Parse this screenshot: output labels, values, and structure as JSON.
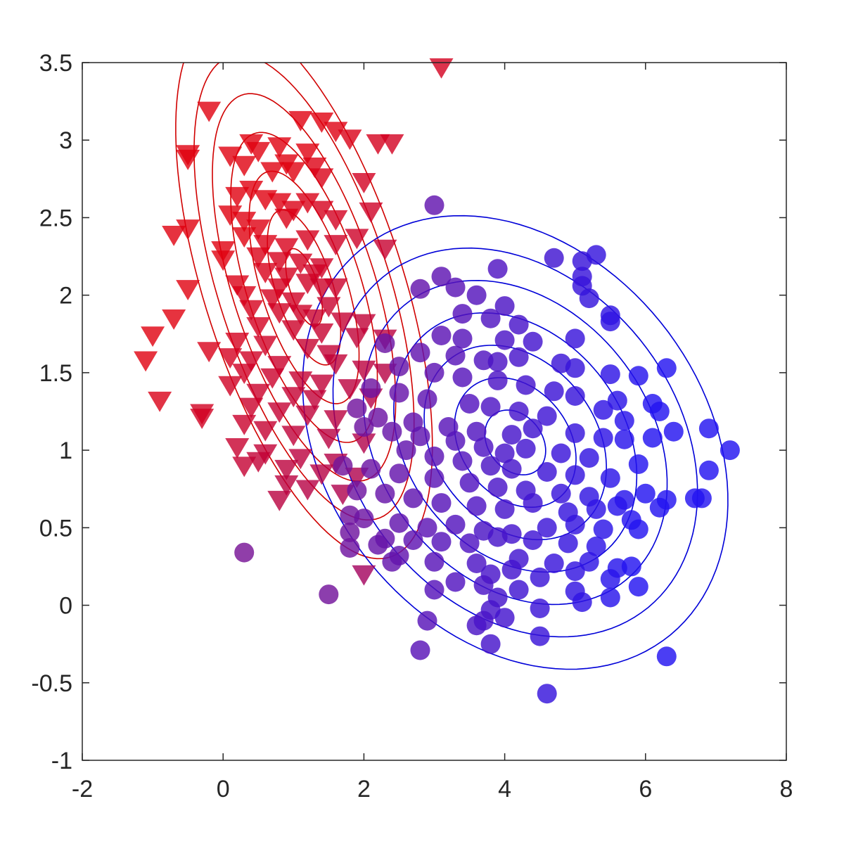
{
  "chart_data": {
    "type": "scatter",
    "title": "",
    "xlabel": "",
    "ylabel": "",
    "xlim": [
      -2,
      8
    ],
    "ylim": [
      -1,
      3.5
    ],
    "xticks": [
      "-2",
      "0",
      "2",
      "4",
      "6",
      "8"
    ],
    "yticks": [
      "-1",
      "-0.5",
      "0",
      "0.5",
      "1",
      "1.5",
      "2",
      "2.5",
      "3",
      "3.5"
    ],
    "grid": false,
    "legend": "none",
    "colors": {
      "class1": "#e0000f",
      "class2": "#2b12ee",
      "contour1": "#d00000",
      "contour2": "#0000d8",
      "axis": "#262626"
    },
    "series": [
      {
        "marker": "triangle-down",
        "color_scale": "red-to-purple",
        "points": [
          [
            3.1,
            3.47
          ],
          [
            -0.2,
            3.19
          ],
          [
            1.1,
            3.13
          ],
          [
            1.4,
            3.12
          ],
          [
            1.6,
            3.06
          ],
          [
            1.8,
            3.01
          ],
          [
            2.2,
            2.98
          ],
          [
            2.4,
            2.98
          ],
          [
            0.4,
            2.98
          ],
          [
            0.8,
            2.96
          ],
          [
            0.5,
            2.93
          ],
          [
            1.2,
            2.92
          ],
          [
            -0.5,
            2.91
          ],
          [
            -0.5,
            2.88
          ],
          [
            0.1,
            2.9
          ],
          [
            0.3,
            2.84
          ],
          [
            0.9,
            2.85
          ],
          [
            1.0,
            2.8
          ],
          [
            1.3,
            2.83
          ],
          [
            0.7,
            2.8
          ],
          [
            1.4,
            2.76
          ],
          [
            2.0,
            2.73
          ],
          [
            0.4,
            2.68
          ],
          [
            0.2,
            2.64
          ],
          [
            0.6,
            2.62
          ],
          [
            0.8,
            2.6
          ],
          [
            1.2,
            2.6
          ],
          [
            1.4,
            2.55
          ],
          [
            1.6,
            2.49
          ],
          [
            0.1,
            2.52
          ],
          [
            0.3,
            2.48
          ],
          [
            0.5,
            2.43
          ],
          [
            0.9,
            2.5
          ],
          [
            1.0,
            2.55
          ],
          [
            2.1,
            2.54
          ],
          [
            -0.7,
            2.39
          ],
          [
            -0.5,
            2.43
          ],
          [
            0.3,
            2.38
          ],
          [
            0.6,
            2.33
          ],
          [
            0.9,
            2.31
          ],
          [
            1.2,
            2.36
          ],
          [
            1.6,
            2.33
          ],
          [
            1.9,
            2.37
          ],
          [
            2.3,
            2.3
          ],
          [
            0.0,
            2.29
          ],
          [
            0.5,
            2.25
          ],
          [
            0.8,
            2.22
          ],
          [
            1.1,
            2.21
          ],
          [
            1.4,
            2.18
          ],
          [
            0.0,
            2.23
          ],
          [
            0.6,
            2.15
          ],
          [
            0.9,
            2.12
          ],
          [
            1.3,
            2.14
          ],
          [
            1.6,
            2.05
          ],
          [
            0.2,
            2.07
          ],
          [
            0.8,
            2.05
          ],
          [
            1.2,
            2.08
          ],
          [
            1.4,
            2.05
          ],
          [
            -0.5,
            2.04
          ],
          [
            0.3,
            2.0
          ],
          [
            0.7,
            1.98
          ],
          [
            1.0,
            1.96
          ],
          [
            1.5,
            1.93
          ],
          [
            0.4,
            1.91
          ],
          [
            0.8,
            1.89
          ],
          [
            1.1,
            1.88
          ],
          [
            1.3,
            1.85
          ],
          [
            1.7,
            1.83
          ],
          [
            2.0,
            1.82
          ],
          [
            -0.7,
            1.85
          ],
          [
            0.5,
            1.8
          ],
          [
            1.0,
            1.78
          ],
          [
            1.4,
            1.76
          ],
          [
            1.9,
            1.73
          ],
          [
            2.3,
            1.72
          ],
          [
            -1.0,
            1.74
          ],
          [
            0.2,
            1.7
          ],
          [
            0.6,
            1.68
          ],
          [
            1.2,
            1.66
          ],
          [
            1.5,
            1.62
          ],
          [
            -0.2,
            1.64
          ],
          [
            0.1,
            1.6
          ],
          [
            0.4,
            1.58
          ],
          [
            0.8,
            1.55
          ],
          [
            1.6,
            1.56
          ],
          [
            2.0,
            1.52
          ],
          [
            2.3,
            1.5
          ],
          [
            -1.1,
            1.58
          ],
          [
            0.3,
            1.5
          ],
          [
            0.7,
            1.47
          ],
          [
            1.1,
            1.45
          ],
          [
            1.4,
            1.43
          ],
          [
            1.8,
            1.4
          ],
          [
            0.1,
            1.42
          ],
          [
            0.5,
            1.37
          ],
          [
            1.0,
            1.35
          ],
          [
            1.3,
            1.33
          ],
          [
            2.1,
            1.34
          ],
          [
            -0.9,
            1.32
          ],
          [
            0.4,
            1.28
          ],
          [
            0.8,
            1.25
          ],
          [
            1.2,
            1.23
          ],
          [
            1.6,
            1.2
          ],
          [
            -0.3,
            1.24
          ],
          [
            -0.3,
            1.21
          ],
          [
            0.3,
            1.17
          ],
          [
            0.6,
            1.13
          ],
          [
            1.0,
            1.1
          ],
          [
            1.5,
            1.08
          ],
          [
            2.0,
            1.05
          ],
          [
            0.2,
            1.02
          ],
          [
            0.6,
            0.98
          ],
          [
            1.1,
            0.95
          ],
          [
            1.6,
            0.92
          ],
          [
            0.3,
            0.9
          ],
          [
            0.5,
            0.93
          ],
          [
            0.9,
            0.88
          ],
          [
            1.4,
            0.85
          ],
          [
            1.9,
            0.83
          ],
          [
            0.9,
            0.78
          ],
          [
            1.2,
            0.75
          ],
          [
            1.7,
            0.72
          ],
          [
            0.8,
            0.68
          ],
          [
            2.0,
            0.2
          ]
        ]
      },
      {
        "marker": "circle",
        "color_scale": "purple-to-blue",
        "points": [
          [
            3.0,
            2.58
          ],
          [
            3.9,
            2.17
          ],
          [
            4.7,
            2.24
          ],
          [
            5.1,
            2.22
          ],
          [
            5.3,
            2.26
          ],
          [
            5.1,
            2.12
          ],
          [
            5.1,
            2.06
          ],
          [
            5.2,
            1.98
          ],
          [
            3.1,
            2.12
          ],
          [
            2.8,
            2.04
          ],
          [
            3.3,
            2.05
          ],
          [
            3.6,
            2.0
          ],
          [
            4.0,
            1.93
          ],
          [
            5.5,
            1.87
          ],
          [
            5.5,
            1.83
          ],
          [
            3.4,
            1.88
          ],
          [
            3.8,
            1.85
          ],
          [
            4.2,
            1.81
          ],
          [
            3.1,
            1.74
          ],
          [
            3.4,
            1.72
          ],
          [
            4.0,
            1.71
          ],
          [
            4.4,
            1.7
          ],
          [
            5.0,
            1.72
          ],
          [
            2.3,
            1.69
          ],
          [
            2.8,
            1.63
          ],
          [
            3.3,
            1.61
          ],
          [
            3.7,
            1.58
          ],
          [
            3.9,
            1.57
          ],
          [
            4.2,
            1.6
          ],
          [
            4.8,
            1.56
          ],
          [
            5.0,
            1.53
          ],
          [
            5.5,
            1.49
          ],
          [
            5.9,
            1.48
          ],
          [
            6.3,
            1.53
          ],
          [
            2.5,
            1.54
          ],
          [
            3.0,
            1.5
          ],
          [
            3.4,
            1.47
          ],
          [
            3.9,
            1.45
          ],
          [
            4.3,
            1.42
          ],
          [
            4.7,
            1.38
          ],
          [
            5.0,
            1.35
          ],
          [
            5.6,
            1.32
          ],
          [
            6.1,
            1.3
          ],
          [
            2.1,
            1.4
          ],
          [
            2.5,
            1.37
          ],
          [
            2.9,
            1.33
          ],
          [
            3.5,
            1.3
          ],
          [
            3.8,
            1.28
          ],
          [
            4.2,
            1.25
          ],
          [
            4.6,
            1.22
          ],
          [
            5.4,
            1.26
          ],
          [
            5.7,
            1.19
          ],
          [
            6.2,
            1.25
          ],
          [
            1.9,
            1.27
          ],
          [
            2.2,
            1.21
          ],
          [
            2.7,
            1.18
          ],
          [
            3.2,
            1.15
          ],
          [
            3.6,
            1.12
          ],
          [
            4.1,
            1.1
          ],
          [
            4.4,
            1.14
          ],
          [
            5.0,
            1.11
          ],
          [
            5.4,
            1.08
          ],
          [
            5.7,
            1.07
          ],
          [
            6.9,
            1.14
          ],
          [
            7.2,
            1.0
          ],
          [
            2.0,
            1.15
          ],
          [
            2.4,
            1.12
          ],
          [
            2.8,
            1.09
          ],
          [
            3.3,
            1.06
          ],
          [
            3.7,
            1.02
          ],
          [
            4.0,
            0.98
          ],
          [
            4.3,
            1.01
          ],
          [
            4.8,
            0.98
          ],
          [
            5.2,
            0.95
          ],
          [
            6.1,
            1.08
          ],
          [
            6.4,
            1.12
          ],
          [
            2.6,
            1.0
          ],
          [
            3.0,
            0.96
          ],
          [
            3.4,
            0.93
          ],
          [
            3.8,
            0.9
          ],
          [
            4.1,
            0.88
          ],
          [
            4.6,
            0.86
          ],
          [
            5.0,
            0.84
          ],
          [
            5.5,
            0.82
          ],
          [
            5.9,
            0.91
          ],
          [
            6.9,
            0.87
          ],
          [
            1.7,
            0.9
          ],
          [
            2.1,
            0.88
          ],
          [
            2.5,
            0.85
          ],
          [
            3.0,
            0.82
          ],
          [
            3.5,
            0.79
          ],
          [
            3.9,
            0.76
          ],
          [
            4.3,
            0.74
          ],
          [
            4.8,
            0.72
          ],
          [
            5.2,
            0.7
          ],
          [
            5.7,
            0.68
          ],
          [
            6.0,
            0.72
          ],
          [
            6.7,
            0.69
          ],
          [
            6.8,
            0.69
          ],
          [
            6.3,
            0.68
          ],
          [
            1.9,
            0.74
          ],
          [
            2.3,
            0.72
          ],
          [
            2.7,
            0.69
          ],
          [
            3.1,
            0.66
          ],
          [
            3.6,
            0.64
          ],
          [
            4.0,
            0.62
          ],
          [
            4.4,
            0.66
          ],
          [
            4.9,
            0.6
          ],
          [
            5.3,
            0.62
          ],
          [
            5.6,
            0.64
          ],
          [
            6.2,
            0.63
          ],
          [
            1.8,
            0.58
          ],
          [
            2.0,
            0.56
          ],
          [
            2.5,
            0.53
          ],
          [
            2.9,
            0.5
          ],
          [
            3.3,
            0.52
          ],
          [
            3.7,
            0.48
          ],
          [
            4.1,
            0.46
          ],
          [
            4.6,
            0.5
          ],
          [
            5.0,
            0.52
          ],
          [
            5.4,
            0.49
          ],
          [
            5.8,
            0.55
          ],
          [
            5.9,
            0.49
          ],
          [
            1.8,
            0.47
          ],
          [
            2.3,
            0.43
          ],
          [
            2.7,
            0.42
          ],
          [
            3.1,
            0.41
          ],
          [
            3.5,
            0.4
          ],
          [
            3.9,
            0.44
          ],
          [
            4.4,
            0.42
          ],
          [
            4.9,
            0.4
          ],
          [
            5.3,
            0.38
          ],
          [
            1.8,
            0.37
          ],
          [
            2.2,
            0.39
          ],
          [
            2.5,
            0.32
          ],
          [
            3.0,
            0.28
          ],
          [
            3.6,
            0.27
          ],
          [
            4.2,
            0.3
          ],
          [
            4.7,
            0.27
          ],
          [
            5.0,
            0.22
          ],
          [
            5.6,
            0.24
          ],
          [
            5.8,
            0.25
          ],
          [
            2.4,
            0.28
          ],
          [
            3.8,
            0.2
          ],
          [
            4.1,
            0.23
          ],
          [
            4.5,
            0.18
          ],
          [
            5.2,
            0.28
          ],
          [
            5.5,
            0.17
          ],
          [
            3.0,
            0.1
          ],
          [
            3.3,
            0.15
          ],
          [
            3.7,
            0.13
          ],
          [
            4.2,
            0.1
          ],
          [
            5.0,
            0.09
          ],
          [
            5.5,
            0.05
          ],
          [
            5.9,
            0.12
          ],
          [
            0.3,
            0.34
          ],
          [
            1.5,
            0.07
          ],
          [
            3.9,
            0.05
          ],
          [
            4.5,
            -0.02
          ],
          [
            5.1,
            0.02
          ],
          [
            3.8,
            -0.03
          ],
          [
            4.0,
            -0.08
          ],
          [
            3.6,
            -0.13
          ],
          [
            3.7,
            -0.1
          ],
          [
            2.9,
            -0.1
          ],
          [
            4.5,
            -0.2
          ],
          [
            2.8,
            -0.29
          ],
          [
            3.8,
            -0.25
          ],
          [
            6.3,
            -0.33
          ],
          [
            4.6,
            -0.57
          ]
        ]
      }
    ],
    "contours": [
      {
        "color": "#d00000",
        "center": [
          1.15,
          2.05
        ],
        "semi_major": 2.25,
        "semi_minor": 1.15,
        "angle_deg": -43,
        "levels": 7
      },
      {
        "color": "#0000d8",
        "center": [
          4.15,
          1.05
        ],
        "semi_major": 3.05,
        "semi_minor": 1.4,
        "angle_deg": -9,
        "levels": 7
      }
    ]
  }
}
